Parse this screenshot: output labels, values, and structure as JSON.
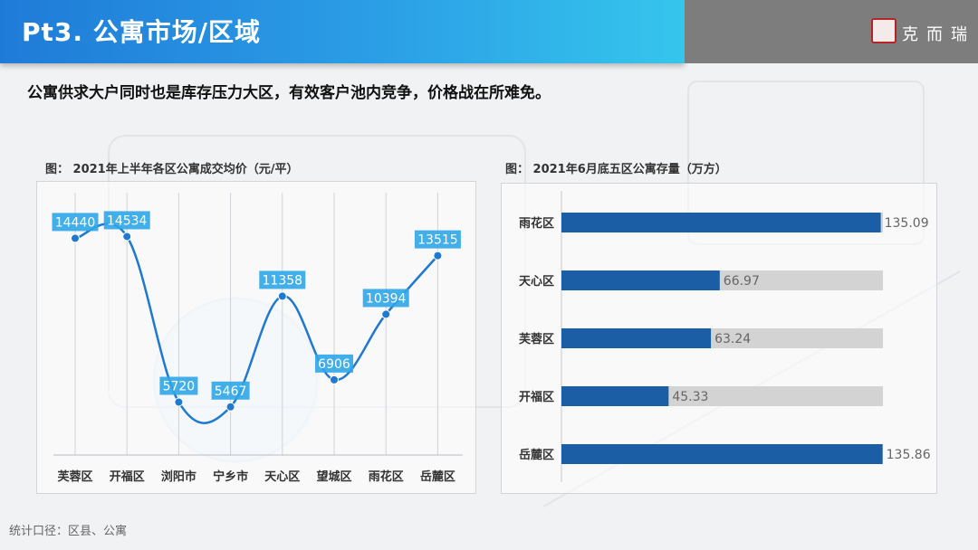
{
  "header": {
    "title": "Pt3. 公寓市场/区域",
    "brand": "克而瑞"
  },
  "subtitle": "公寓供求大户同时也是库存压力大区，有效客户池内竞争，价格战在所难免。",
  "footer": {
    "note": "统计口径：区县、公寓"
  },
  "colors": {
    "line": "#1f78d1",
    "label_bg": "#2fa6e8",
    "bar": "#1b5ea6",
    "bar_track": "#d3d3d3"
  },
  "chart_data": [
    {
      "type": "line",
      "title": "图：  2021年上半年各区公寓成交均价（元/平）",
      "categories": [
        "芙蓉区",
        "开福区",
        "浏阳市",
        "宁乡市",
        "天心区",
        "望城区",
        "雨花区",
        "岳麓区"
      ],
      "values": [
        14440,
        14534,
        5720,
        5467,
        11358,
        6906,
        10394,
        13515
      ],
      "smooth": true,
      "data_labels": true,
      "ylim": [
        3000,
        16000
      ],
      "grid": "vertical"
    },
    {
      "type": "bar",
      "orientation": "horizontal",
      "title": "图：  2021年6月底五区公寓存量（万方）",
      "categories": [
        "雨花区",
        "天心区",
        "芙蓉区",
        "开福区",
        "岳麓区"
      ],
      "values": [
        135.09,
        66.97,
        63.24,
        45.33,
        135.86
      ],
      "xlim": [
        0,
        136
      ],
      "data_labels": true
    }
  ]
}
